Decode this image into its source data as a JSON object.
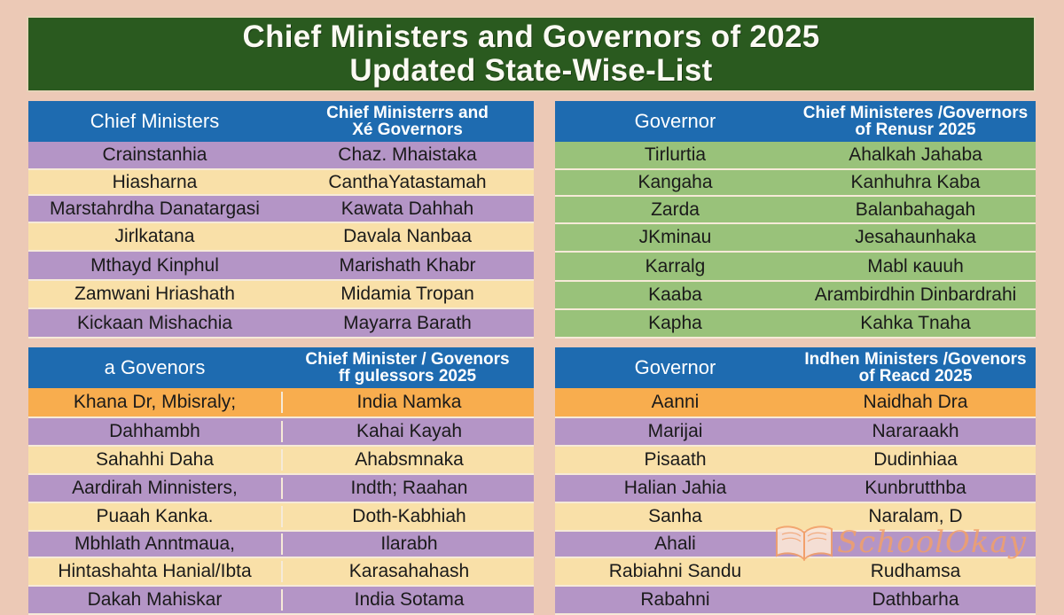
{
  "title": {
    "line1": "Chief Ministers and Governors of 2025",
    "line2": "Updated State-Wise-List"
  },
  "panels": [
    {
      "header_left": "Chief Ministers",
      "header_right_1": "Chief Ministerrs and",
      "header_right_2": "Xé Governors",
      "rows": [
        {
          "left": "Crainstanhia",
          "right": "Chaz. Mhaistaka",
          "color": "purple"
        },
        {
          "left": "Hiasharna",
          "right": "CanthaYatastamah",
          "color": "cream"
        },
        {
          "left": "Marstahrdha Danatargasi",
          "right": "Kawata Dahhah",
          "color": "purple"
        },
        {
          "left": "Jirlkatana",
          "right": "Davala Nanbaa",
          "color": "cream"
        },
        {
          "left": "Mthayd Kinphul",
          "right": "Marishath Khabr",
          "color": "purple"
        },
        {
          "left": "Zamwani Hriashath",
          "right": "Midamia Tropan",
          "color": "cream"
        },
        {
          "left": "Kickaan Mishachia",
          "right": "Mayarra Barath",
          "color": "purple"
        }
      ]
    },
    {
      "header_left": "Governor",
      "header_right_1": "Chief Ministeres /Governors",
      "header_right_2": "of Renusr 2025",
      "rows": [
        {
          "left": "Tirlurtia",
          "right": "Ahalkah Jahaba",
          "color": "green"
        },
        {
          "left": "Kangaha",
          "right": "Kanhuhra Kaba",
          "color": "green"
        },
        {
          "left": "Zarda",
          "right": "Balanbahagah",
          "color": "green"
        },
        {
          "left": "JKminau",
          "right": "Jesahaunhaka",
          "color": "green"
        },
        {
          "left": "Karralg",
          "right": "Mabl ĸauuh",
          "color": "green"
        },
        {
          "left": "Kaaba",
          "right": "Arambirdhin Dinbardrahi",
          "color": "green"
        },
        {
          "left": "Kapha",
          "right": "Kahka Tnaha",
          "color": "green"
        }
      ]
    },
    {
      "header_left": "a Govenors",
      "header_right_1": "Chief Minister / Govenors",
      "header_right_2": "ff gulessors 2025",
      "rows": [
        {
          "left": "Khana Dr, Mbisraly;",
          "right": "India Namka",
          "color": "orange"
        },
        {
          "left": "Dahhambh",
          "right": "Kahai Kayah",
          "color": "purple"
        },
        {
          "left": "Sahahhi Daha",
          "right": "Ahabsmnaka",
          "color": "cream"
        },
        {
          "left": "Aardirah Minnisters,",
          "right": "Indth; Raahan",
          "color": "purple"
        },
        {
          "left": "Puaah Kanka.",
          "right": "Doth-Kabhiah",
          "color": "cream"
        },
        {
          "left": "Mbhlath Anntmaua,",
          "right": "Ilarabh",
          "color": "purple"
        },
        {
          "left": "Hintashahta Hanial/Ibta",
          "right": "Karasahahash",
          "color": "cream"
        },
        {
          "left": "Dakah Mahiskar",
          "right": "India Sotama",
          "color": "purple"
        }
      ]
    },
    {
      "header_left": "Governor",
      "header_right_1": "Indhen Ministers /Govenors",
      "header_right_2": "of Reacd 2025",
      "rows": [
        {
          "left": "Aanni",
          "right": "Naidhah Dra",
          "color": "orange"
        },
        {
          "left": "Marijai",
          "right": "Nararaakh",
          "color": "purple"
        },
        {
          "left": "Pisaath",
          "right": "Dudinhiaa",
          "color": "cream"
        },
        {
          "left": "Halian Jahia",
          "right": "Kunbrutthba",
          "color": "purple"
        },
        {
          "left": "Sanha",
          "right": "Naralam, D",
          "color": "cream"
        },
        {
          "left": "Ahali",
          "right": "",
          "color": "purple"
        },
        {
          "left": "Rabiahni Sandu",
          "right": "Rudhamsa",
          "color": "cream"
        },
        {
          "left": "Rabahni",
          "right": "Dathbarha",
          "color": "purple"
        }
      ]
    }
  ],
  "watermark": {
    "text": "SchoolOkay",
    "icon": "open-book-icon"
  }
}
